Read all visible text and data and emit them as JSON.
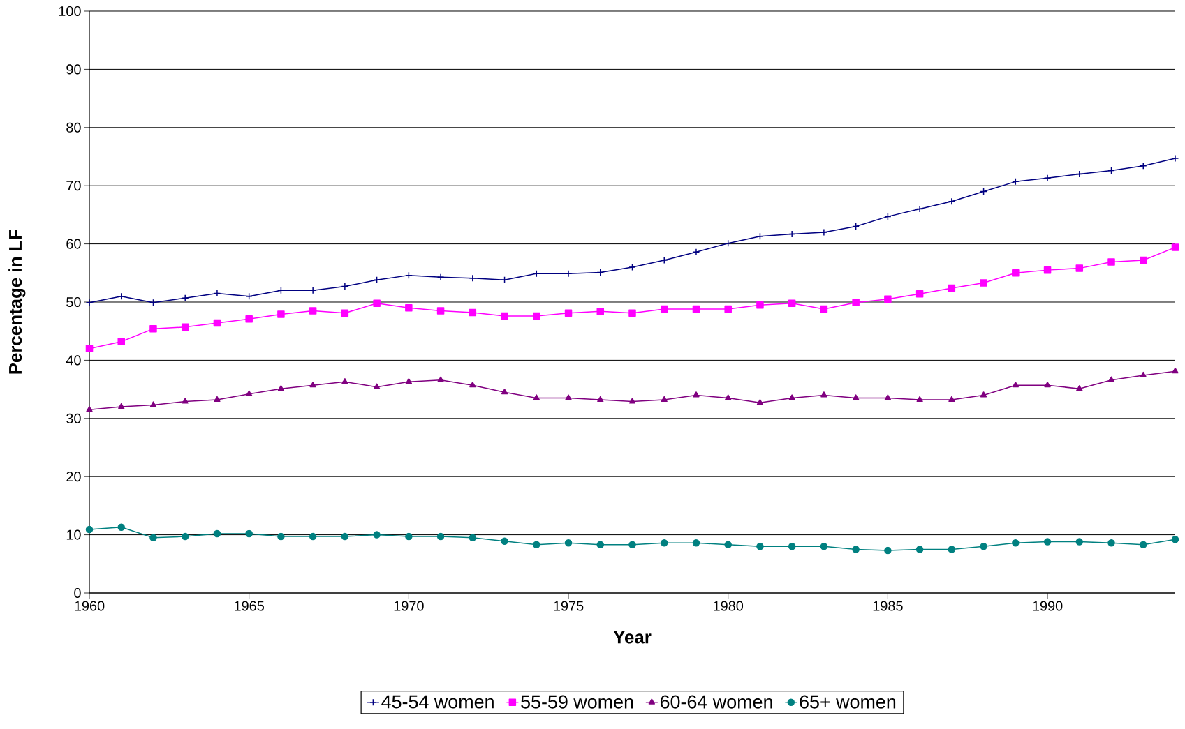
{
  "chart_data": {
    "type": "line",
    "xlabel": "Year",
    "ylabel": "Percentage in LF",
    "x": [
      1960,
      1961,
      1962,
      1963,
      1964,
      1965,
      1966,
      1967,
      1968,
      1969,
      1970,
      1971,
      1972,
      1973,
      1974,
      1975,
      1976,
      1977,
      1978,
      1979,
      1980,
      1981,
      1982,
      1983,
      1984,
      1985,
      1986,
      1987,
      1988,
      1989,
      1990,
      1991,
      1992,
      1993,
      1994
    ],
    "xlim": [
      1960,
      1994
    ],
    "xticks": [
      1960,
      1965,
      1970,
      1975,
      1980,
      1985,
      1990
    ],
    "ylim": [
      0,
      100
    ],
    "yticks": [
      0,
      10,
      20,
      30,
      40,
      50,
      60,
      70,
      80,
      90,
      100
    ],
    "grid": "y",
    "legend": "bottom",
    "line_style": "solid",
    "series": [
      {
        "name": "45-54 women",
        "color": "#000080",
        "marker": "cross",
        "values": [
          49.9,
          51.0,
          49.9,
          50.7,
          51.5,
          51.0,
          52.0,
          52.0,
          52.7,
          53.8,
          54.6,
          54.3,
          54.1,
          53.8,
          54.9,
          54.9,
          55.1,
          56.0,
          57.2,
          58.6,
          60.1,
          61.3,
          61.7,
          62.0,
          63.0,
          64.7,
          66.0,
          67.3,
          69.0,
          70.7,
          71.3,
          72.0,
          72.6,
          73.4,
          74.7
        ]
      },
      {
        "name": "55-59 women",
        "color": "#ff00ff",
        "marker": "square",
        "values": [
          42.0,
          43.2,
          45.4,
          45.7,
          46.4,
          47.1,
          47.9,
          48.5,
          48.1,
          49.8,
          49.0,
          48.5,
          48.2,
          47.6,
          47.6,
          48.1,
          48.4,
          48.1,
          48.8,
          48.8,
          48.8,
          49.5,
          49.8,
          48.8,
          49.9,
          50.5,
          51.4,
          52.4,
          53.3,
          55.0,
          55.5,
          55.8,
          56.9,
          57.2,
          59.4
        ]
      },
      {
        "name": "60-64 women",
        "color": "#800080",
        "marker": "triangle",
        "values": [
          31.5,
          32.0,
          32.3,
          32.9,
          33.2,
          34.2,
          35.1,
          35.7,
          36.3,
          35.4,
          36.3,
          36.6,
          35.7,
          34.5,
          33.5,
          33.5,
          33.2,
          32.9,
          33.2,
          34.0,
          33.5,
          32.7,
          33.5,
          34.0,
          33.5,
          33.5,
          33.2,
          33.2,
          34.0,
          35.7,
          35.7,
          35.1,
          36.6,
          37.4,
          38.1
        ]
      },
      {
        "name": "65+ women",
        "color": "#008080",
        "marker": "circle",
        "values": [
          10.9,
          11.3,
          9.5,
          9.7,
          10.2,
          10.2,
          9.7,
          9.7,
          9.7,
          10.0,
          9.7,
          9.7,
          9.5,
          8.9,
          8.3,
          8.6,
          8.3,
          8.3,
          8.6,
          8.6,
          8.3,
          8.0,
          8.0,
          8.0,
          7.5,
          7.3,
          7.5,
          7.5,
          8.0,
          8.6,
          8.8,
          8.8,
          8.6,
          8.3,
          9.2
        ]
      }
    ]
  }
}
